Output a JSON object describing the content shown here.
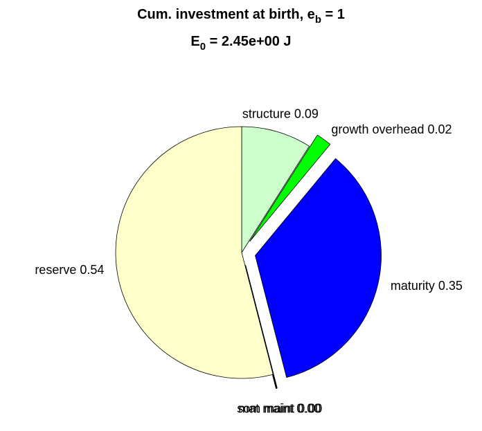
{
  "chart_data": {
    "type": "pie",
    "title": {
      "text": "Cum. investment at birth, e",
      "sub": "b",
      "rest": " = 1"
    },
    "subtitle": {
      "text": "E",
      "sub": "0",
      "rest": " = 2.45e+00 J"
    },
    "categories": [
      "structure",
      "growth overhead",
      "maturity",
      "som maint",
      "mat maint",
      "reserve"
    ],
    "labels": [
      "structure 0.09",
      "growth overhead 0.02",
      "maturity 0.35",
      "som maint 0.00",
      "mat maint 0.00",
      "reserve 0.54"
    ],
    "values": [
      0.09,
      0.02,
      0.35,
      0.0,
      0.0,
      0.54
    ],
    "colors": [
      "#ccffcc",
      "#00ff00",
      "#0000ff",
      "#ff0000",
      "#ff00ff",
      "#ffffcc"
    ],
    "explode": [
      false,
      true,
      true,
      true,
      true,
      false
    ],
    "direction": "clockwise"
  }
}
